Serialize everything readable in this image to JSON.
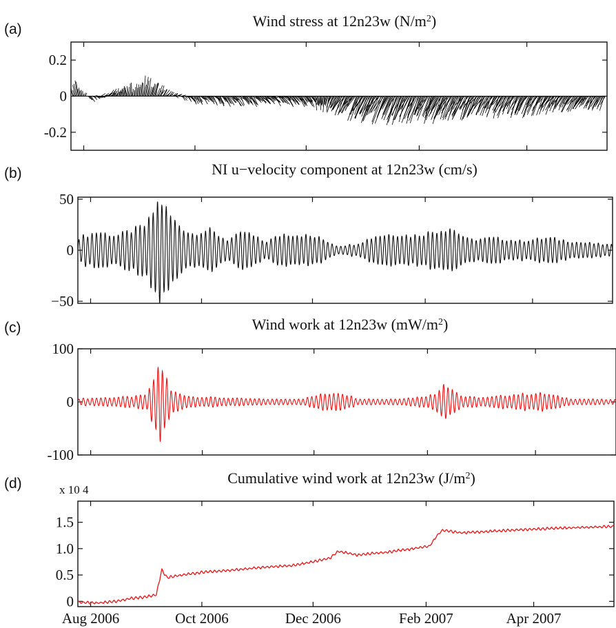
{
  "chart_data": [
    {
      "panel": "(a)",
      "type": "line",
      "title": "Wind stress at 12n23w (N/m²)",
      "xlabel": "",
      "ylabel": "",
      "ylim": [
        -0.3,
        0.3
      ],
      "yticks": [
        -0.2,
        0,
        0.2
      ],
      "ytick_labels": [
        "-0.2",
        "0",
        "0.2"
      ],
      "x_range": [
        "2006-07-25",
        "2007-05-15"
      ],
      "series": [
        {
          "kind": "stick-vectors",
          "color": "#000000",
          "sample_days": [
            "2006-07-28",
            "2006-08-05",
            "2006-08-15",
            "2006-08-25",
            "2006-09-05",
            "2006-09-15",
            "2006-10-01",
            "2006-10-20",
            "2006-11-10",
            "2006-12-01",
            "2006-12-20",
            "2007-01-10",
            "2007-02-01",
            "2007-02-20",
            "2007-03-10",
            "2007-04-01",
            "2007-04-20",
            "2007-05-10"
          ],
          "u": [
            -0.05,
            0.06,
            0.08,
            -0.04,
            0.05,
            0.07,
            0.06,
            0.09,
            0.12,
            0.1,
            -0.14,
            -0.16,
            -0.15,
            -0.16,
            -0.14,
            -0.12,
            -0.13,
            -0.11
          ],
          "v": [
            0.06,
            -0.02,
            0.03,
            0.04,
            0.08,
            0.02,
            -0.03,
            -0.04,
            -0.03,
            -0.04,
            -0.08,
            -0.12,
            -0.11,
            -0.1,
            -0.09,
            -0.08,
            -0.07,
            -0.06
          ]
        }
      ]
    },
    {
      "panel": "(b)",
      "type": "line",
      "title": "NI u−velocity component at 12n23w (cm/s)",
      "xlabel": "",
      "ylabel": "",
      "ylim": [
        -52,
        52
      ],
      "yticks": [
        -50,
        0,
        50
      ],
      "ytick_labels": [
        "−50",
        "0",
        "50"
      ],
      "x_range": [
        "2006-07-25",
        "2007-05-15"
      ],
      "series": [
        {
          "name": "",
          "color": "#111111",
          "kind": "oscillation-envelope",
          "period_days": 2.4,
          "envelope_days": [
            "2006-07-25",
            "2006-08-05",
            "2006-08-15",
            "2006-08-25",
            "2006-09-01",
            "2006-09-08",
            "2006-09-15",
            "2006-09-25",
            "2006-10-05",
            "2006-10-15",
            "2006-10-25",
            "2006-11-05",
            "2006-11-15",
            "2006-11-25",
            "2006-12-05",
            "2006-12-15",
            "2006-12-25",
            "2007-01-05",
            "2007-01-15",
            "2007-01-25",
            "2007-02-05",
            "2007-02-15",
            "2007-02-25",
            "2007-03-10",
            "2007-03-25",
            "2007-04-10",
            "2007-04-25",
            "2007-05-15"
          ],
          "envelope_cm_s": [
            12,
            18,
            14,
            20,
            25,
            50,
            30,
            16,
            20,
            10,
            18,
            8,
            16,
            15,
            12,
            4,
            6,
            14,
            16,
            14,
            18,
            22,
            10,
            12,
            9,
            12,
            8,
            5
          ]
        }
      ]
    },
    {
      "panel": "(c)",
      "type": "line",
      "title": "Wind work at 12n23w (mW/m²)",
      "xlabel": "",
      "ylabel": "",
      "ylim": [
        -100,
        100
      ],
      "yticks": [
        -100,
        0,
        100
      ],
      "ytick_labels": [
        "-100",
        "0",
        "100"
      ],
      "x_range": [
        "2006-07-25",
        "2007-05-15"
      ],
      "series": [
        {
          "name": "",
          "color": "#ee1111",
          "kind": "oscillation-envelope",
          "period_days": 2.4,
          "envelope_days": [
            "2006-07-25",
            "2006-08-10",
            "2006-08-25",
            "2006-09-01",
            "2006-09-08",
            "2006-09-14",
            "2006-09-25",
            "2006-10-10",
            "2006-10-25",
            "2006-11-10",
            "2006-11-25",
            "2006-12-05",
            "2006-12-15",
            "2006-12-25",
            "2007-01-10",
            "2007-01-25",
            "2007-02-05",
            "2007-02-10",
            "2007-02-20",
            "2007-03-05",
            "2007-03-20",
            "2007-04-05",
            "2007-04-20",
            "2007-05-15"
          ],
          "envelope_mW_m2": [
            6,
            8,
            10,
            14,
            72,
            20,
            10,
            8,
            6,
            5,
            6,
            14,
            18,
            6,
            5,
            8,
            14,
            36,
            10,
            8,
            14,
            16,
            6,
            4
          ]
        }
      ]
    },
    {
      "panel": "(d)",
      "type": "line",
      "title": "Cumulative wind work at 12n23w (J/m²)",
      "exponent_label": "x 10 4",
      "xlabel": "",
      "ylabel": "",
      "ylim": [
        -0.1,
        1.9
      ],
      "yticks": [
        0,
        0.5,
        1.0,
        1.5
      ],
      "ytick_labels": [
        "0",
        "0.5",
        "1.0",
        "1.5"
      ],
      "x_range": [
        "2006-07-25",
        "2007-05-15"
      ],
      "xticks": [
        "2006-08-01",
        "2006-10-01",
        "2006-12-01",
        "2007-02-01",
        "2007-04-01"
      ],
      "xtick_labels": [
        "Aug 2006",
        "Oct 2006",
        "Dec 2006",
        "Feb 2007",
        "Apr 2007"
      ],
      "series": [
        {
          "name": "",
          "color": "#ee1111",
          "x": [
            "2006-07-25",
            "2006-08-05",
            "2006-08-15",
            "2006-08-22",
            "2006-08-30",
            "2006-09-06",
            "2006-09-09",
            "2006-09-12",
            "2006-09-20",
            "2006-10-01",
            "2006-10-20",
            "2006-11-05",
            "2006-11-20",
            "2006-12-01",
            "2006-12-10",
            "2006-12-15",
            "2006-12-25",
            "2007-01-10",
            "2007-01-25",
            "2007-02-03",
            "2007-02-07",
            "2007-02-10",
            "2007-02-20",
            "2007-03-10",
            "2007-03-25",
            "2007-04-10",
            "2007-04-25",
            "2007-05-15"
          ],
          "y": [
            -0.02,
            -0.03,
            0.0,
            0.05,
            0.08,
            0.12,
            0.6,
            0.45,
            0.5,
            0.55,
            0.6,
            0.65,
            0.68,
            0.75,
            0.82,
            0.95,
            0.88,
            0.93,
            1.0,
            1.05,
            1.25,
            1.35,
            1.3,
            1.33,
            1.36,
            1.38,
            1.4,
            1.42
          ]
        }
      ]
    }
  ],
  "panels": [
    {
      "letter": "(a)",
      "title": "Wind stress at 12n23w (N/m",
      "title_sup": "2",
      "title_tail": ")"
    },
    {
      "letter": "(b)",
      "title": "NI u−velocity component at 12n23w (cm/s)",
      "title_sup": "",
      "title_tail": ""
    },
    {
      "letter": "(c)",
      "title": "Wind work at 12n23w (mW/m",
      "title_sup": "2",
      "title_tail": ")"
    },
    {
      "letter": "(d)",
      "title": "Cumulative wind work at 12n23w (J/m",
      "title_sup": "2",
      "title_tail": ")"
    }
  ]
}
